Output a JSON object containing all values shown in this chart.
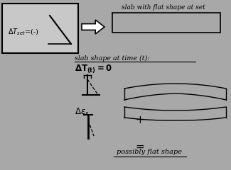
{
  "bg_color": "#a8a8a8",
  "box_color": "#c8c8c8",
  "title_text": "slab with flat shape at set",
  "slab_time_label": "slab shape at time (t):",
  "result_label": "possibly flat shape",
  "line_color": "#000000",
  "fig_w": 3.25,
  "fig_h": 2.4,
  "dpi": 100
}
